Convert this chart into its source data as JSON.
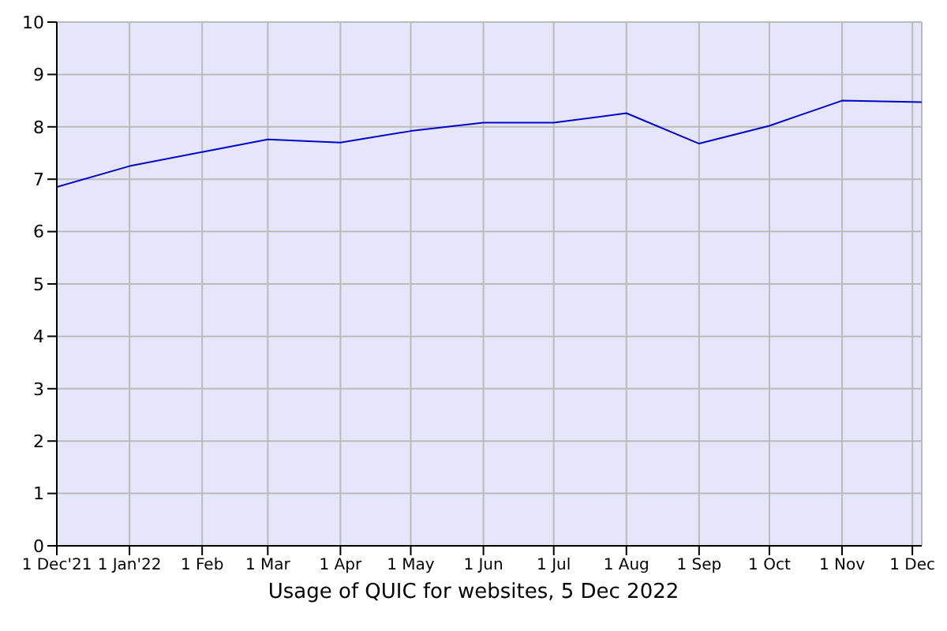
{
  "chart_data": {
    "type": "line",
    "title": "Usage of QUIC for websites, 5 Dec 2022",
    "x": [
      "2021-12-01",
      "2022-01-01",
      "2022-02-01",
      "2022-03-01",
      "2022-04-01",
      "2022-05-01",
      "2022-06-01",
      "2022-07-01",
      "2022-08-01",
      "2022-09-01",
      "2022-10-01",
      "2022-11-01",
      "2022-12-05"
    ],
    "series": [
      {
        "color": "#0000cc",
        "values": [
          6.85,
          7.25,
          7.52,
          7.76,
          7.7,
          7.92,
          8.08,
          8.08,
          8.26,
          7.68,
          8.02,
          8.5,
          8.47
        ]
      }
    ],
    "xlim": [
      "2021-12-01",
      "2022-12-05"
    ],
    "xticks": [
      {
        "value": "2021-12-01",
        "label": "1 Dec'21"
      },
      {
        "value": "2022-01-01",
        "label": "1 Jan'22"
      },
      {
        "value": "2022-02-01",
        "label": "1 Feb"
      },
      {
        "value": "2022-03-01",
        "label": "1 Mar"
      },
      {
        "value": "2022-04-01",
        "label": "1 Apr"
      },
      {
        "value": "2022-05-01",
        "label": "1 May"
      },
      {
        "value": "2022-06-01",
        "label": "1 Jun"
      },
      {
        "value": "2022-07-01",
        "label": "1 Jul"
      },
      {
        "value": "2022-08-01",
        "label": "1 Aug"
      },
      {
        "value": "2022-09-01",
        "label": "1 Sep"
      },
      {
        "value": "2022-10-01",
        "label": "1 Oct"
      },
      {
        "value": "2022-11-01",
        "label": "1 Nov"
      },
      {
        "value": "2022-12-01",
        "label": "1 Dec"
      }
    ],
    "ylim": [
      0,
      10
    ],
    "yticks": [
      0,
      1,
      2,
      3,
      4,
      5,
      6,
      7,
      8,
      9,
      10
    ],
    "grid": true,
    "marker": "none",
    "line_style": "solid",
    "legend": false
  }
}
